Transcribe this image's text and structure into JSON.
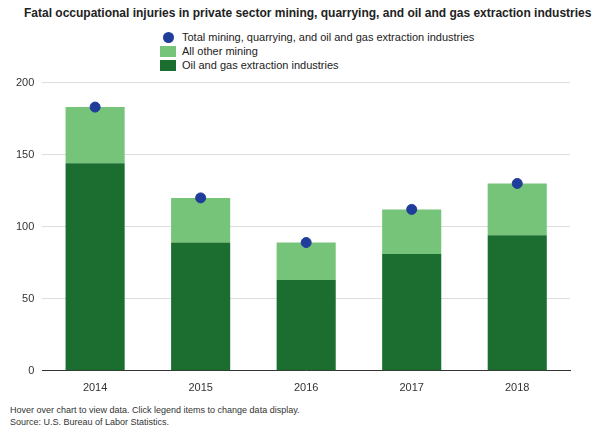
{
  "chart_data": {
    "type": "bar",
    "title": "Fatal occupational injuries in private sector mining, quarrying, and oil and gas extraction industries",
    "categories": [
      "2014",
      "2015",
      "2016",
      "2017",
      "2018"
    ],
    "series": [
      {
        "name": "Total mining, quarrying, and oil and gas extraction industries",
        "type": "scatter",
        "marker": "circle",
        "color": "#1f3d99",
        "values": [
          183,
          120,
          89,
          112,
          130
        ]
      },
      {
        "name": "All other mining",
        "color": "#76c479",
        "values": [
          39,
          31,
          26,
          31,
          36
        ]
      },
      {
        "name": "Oil and gas extraction industries",
        "color": "#1b6e30",
        "values": [
          144,
          89,
          63,
          81,
          94
        ]
      }
    ],
    "stacked": true,
    "ylim": [
      0,
      200
    ],
    "yticks": [
      0,
      50,
      100,
      150,
      200
    ],
    "grid": true,
    "legend": "top-left",
    "annotations": [
      "Hover over chart to view data. Click legend items to change data display.",
      "Source: U.S. Bureau of Labor Statistics."
    ]
  }
}
